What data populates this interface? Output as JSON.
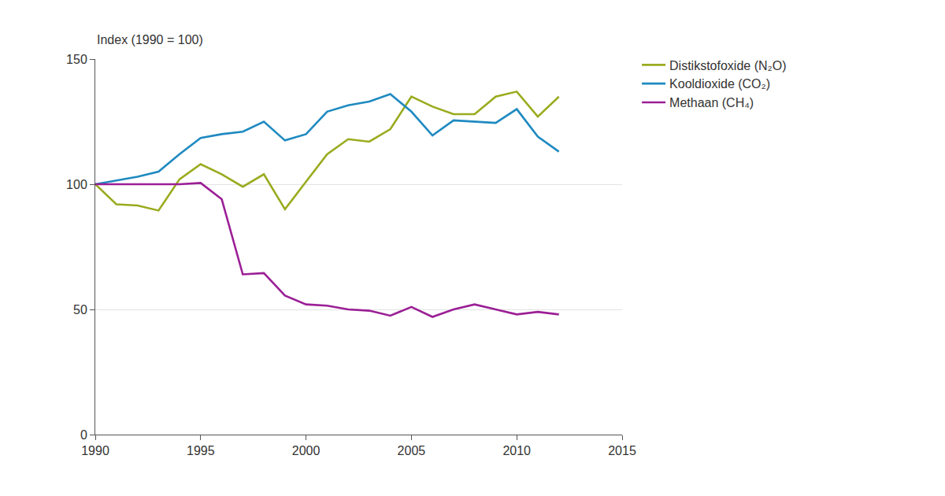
{
  "chart_data": {
    "type": "line",
    "ylabel": "Index (1990 = 100)",
    "x": [
      1990,
      1991,
      1992,
      1993,
      1994,
      1995,
      1996,
      1997,
      1998,
      1999,
      2000,
      2001,
      2002,
      2003,
      2004,
      2005,
      2006,
      2007,
      2008,
      2009,
      2010,
      2011,
      2012
    ],
    "series": [
      {
        "name": "Distikstofoxide (N₂O)",
        "color": "#9aab1e",
        "values": [
          100,
          92,
          91.5,
          89.5,
          102,
          108,
          104,
          99,
          104,
          90,
          101,
          112,
          118,
          117,
          122,
          135,
          131,
          128,
          128,
          135,
          137,
          127,
          135
        ]
      },
      {
        "name": "Kooldioxide (CO₂)",
        "color": "#1f8ac0",
        "values": [
          100,
          101.5,
          103,
          105,
          112,
          118.5,
          120,
          121,
          125,
          117.5,
          120,
          129,
          131.5,
          133,
          136,
          129,
          119.5,
          125.5,
          125,
          124.5,
          130,
          119,
          113
        ]
      },
      {
        "name": "Methaan (CH₄)",
        "color": "#9b1f96",
        "values": [
          100,
          100,
          100,
          100,
          100,
          100.5,
          94,
          64,
          64.5,
          55.5,
          52,
          51.5,
          50,
          49.5,
          47.5,
          51,
          47,
          50,
          52,
          50,
          48,
          49,
          48
        ]
      }
    ],
    "xlim": [
      1990,
      2015
    ],
    "xticks": [
      1990,
      1995,
      2000,
      2005,
      2010,
      2015
    ],
    "ylim": [
      0,
      150
    ],
    "yticks": [
      0,
      50,
      100,
      150
    ],
    "grid": true,
    "legend": "right"
  }
}
